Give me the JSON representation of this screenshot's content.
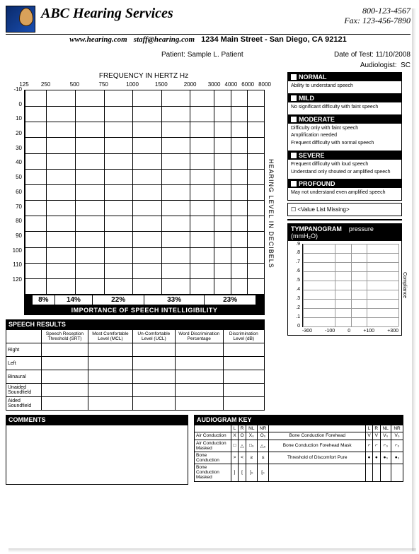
{
  "header": {
    "company": "ABC Hearing Services",
    "phone": "800-123-4567",
    "fax_label": "Fax:",
    "fax": "123-456-7890",
    "website": "www.hearing.com",
    "email": "staff@hearing.com",
    "address": "1234 Main Street - San Diego, CA 92121"
  },
  "patient_info": {
    "patient_label": "Patient:",
    "patient": "Sample L. Patient",
    "date_label": "Date of Test:",
    "date": "11/10/2008",
    "audiologist_label": "Audiologist:",
    "audiologist": "SC"
  },
  "audiogram": {
    "freq_title": "FREQUENCY IN HERTZ Hz",
    "freq_labels": [
      "125",
      "250",
      "500",
      "750",
      "1000",
      "1500",
      "2000",
      "3000",
      "4000",
      "6000",
      "8000"
    ],
    "freq_positions": [
      0,
      9,
      21,
      33,
      45,
      57,
      69,
      79,
      86,
      93,
      100
    ],
    "y_labels": [
      "-10",
      "0",
      "10",
      "20",
      "30",
      "40",
      "50",
      "60",
      "70",
      "80",
      "90",
      "100",
      "110",
      "120"
    ],
    "y_axis_label": "HEARING LEVEL IN DECIBELS",
    "pct_row": [
      "8%",
      "14%",
      "22%",
      "33%",
      "23%"
    ],
    "pct_widths": [
      10,
      17,
      23,
      27,
      23
    ],
    "importance_label": "IMPORTANCE OF SPEECH INTELLIGIBILITY"
  },
  "severity": [
    {
      "label": "NORMAL",
      "items": [
        "Ability to understand speech"
      ]
    },
    {
      "label": "MILD",
      "items": [
        "No significant difficulty with faint speech"
      ]
    },
    {
      "label": "MODERATE",
      "items": [
        "Difficulty only with faint speech",
        "Amplification needed",
        "Frequent difficulty with normal speech"
      ]
    },
    {
      "label": "SEVERE",
      "items": [
        "Frequent difficulty with loud speech",
        "Understand only shouted or amplified speech"
      ]
    },
    {
      "label": "PROFOUND",
      "items": [
        "May not understand even amplified speech"
      ]
    }
  ],
  "missing": "<Value List Missing>",
  "speech": {
    "title": "SPEECH RESULTS",
    "cols": [
      "Speech Reception Threshold (SRT)",
      "Most Comfortable Level (MCL)",
      "Un-Comfortable Level (UCL)",
      "Word Discrimination Percentage",
      "Discrimination Level (dB)"
    ],
    "rows": [
      "Right",
      "Left",
      "Binaural",
      "Unaided Soundfield",
      "Aided Soundfield"
    ]
  },
  "tymp": {
    "title": "TYMPANOGRAM",
    "subtitle": "pressure (mmH₂O)",
    "y_vals": [
      ".9",
      ".8",
      ".7",
      ".6",
      ".5",
      ".4",
      ".3",
      ".2",
      ".1",
      "0"
    ],
    "x_vals": [
      "-300",
      "-100",
      "0",
      "+100",
      "+300"
    ],
    "compliance": "Compliance"
  },
  "comments": {
    "title": "COMMENTS"
  },
  "key": {
    "title": "AUDIOGRAM KEY",
    "header": [
      "",
      "L",
      "R",
      "NL",
      "NR",
      "",
      "L",
      "R",
      "NL",
      "NR"
    ],
    "rows": [
      [
        "Air Conduction",
        "X",
        "O",
        "X₀",
        "O₀",
        "Bone Conduction Forehead",
        "V",
        "V",
        "V₀",
        "V₀"
      ],
      [
        "Air Conduction Masked",
        "□",
        "△",
        "□₀",
        "△₀",
        "Bone Conduction Forehead Mask",
        "⌐",
        "⌐",
        "⌐₀",
        "⌐₀"
      ],
      [
        "Bone Conduction",
        ">",
        "<",
        "≥",
        "≤",
        "Threshold of Discomfort Pure",
        "●",
        "●",
        "●₀",
        "●₀"
      ],
      [
        "Bone Conduction Masked",
        "]",
        "[",
        "]₀",
        "[₀",
        "",
        "",
        "",
        "",
        ""
      ]
    ]
  }
}
